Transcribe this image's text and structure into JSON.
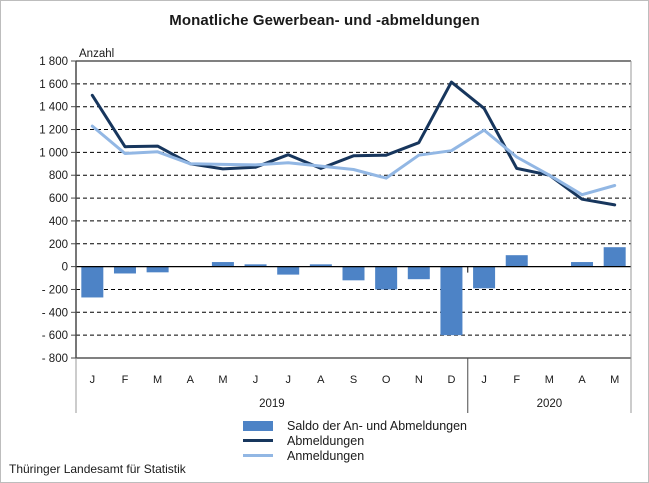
{
  "page": {
    "source": "Thüringer Landesamt für Statistik"
  },
  "chart_data": {
    "type": "combo-bar-line",
    "title": "Monatliche Gewerbean- und -abmeldungen",
    "ylabel": "Anzahl",
    "xlabel": "",
    "ylim": [
      -800,
      1800
    ],
    "grid": "dashed-horizontal",
    "legend_position": "bottom-center",
    "yticks": [
      1800,
      1600,
      1400,
      1200,
      1000,
      800,
      600,
      400,
      200,
      0,
      -200,
      -400,
      -600,
      -800
    ],
    "ytick_labels": [
      "1 800",
      "1 600",
      "1 400",
      "1 200",
      "1 000",
      "800",
      "600",
      "400",
      "200",
      "0",
      "- 200",
      "- 400",
      "- 600",
      "- 800"
    ],
    "categories": [
      "J",
      "F",
      "M",
      "A",
      "M",
      "J",
      "J",
      "A",
      "S",
      "O",
      "N",
      "D",
      "J",
      "F",
      "M",
      "A",
      "M"
    ],
    "year_groups": [
      {
        "label": "2019",
        "months": 12
      },
      {
        "label": "2020",
        "months": 5
      }
    ],
    "series": [
      {
        "name": "Saldo der An- und Abmeldungen",
        "type": "bar",
        "color": "#4d83c6",
        "values": [
          -270,
          -60,
          -50,
          0,
          40,
          20,
          -70,
          20,
          -120,
          -200,
          -110,
          -600,
          -190,
          100,
          0,
          40,
          170
        ]
      },
      {
        "name": "Abmeldungen",
        "type": "line",
        "color": "#17365d",
        "values": [
          1500,
          1050,
          1055,
          900,
          855,
          870,
          980,
          860,
          970,
          975,
          1085,
          1615,
          1385,
          860,
          800,
          590,
          540
        ]
      },
      {
        "name": "Anmeldungen",
        "type": "line",
        "color": "#92b7e4",
        "values": [
          1230,
          990,
          1005,
          900,
          895,
          890,
          910,
          880,
          850,
          775,
          975,
          1015,
          1195,
          960,
          800,
          630,
          710
        ]
      }
    ],
    "colors": {
      "axis": "#4a4a4a",
      "boundary": "#9a9a9a",
      "gridline": "#000000",
      "text": "#1a1a1a"
    }
  }
}
